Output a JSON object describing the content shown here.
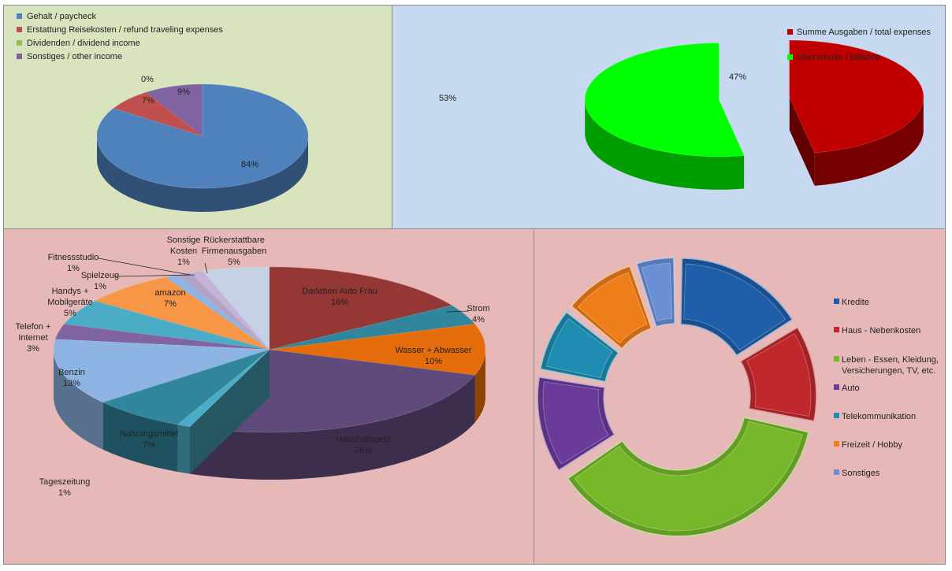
{
  "chart_data": [
    {
      "type": "pie",
      "style": "3d",
      "legend_position": "top-left",
      "categories": [
        "Gehalt / paycheck",
        "Erstattung Reisekosten / refund traveling expenses",
        "Dividenden / dividend income",
        "Sonstiges / other income"
      ],
      "values": [
        84,
        7,
        0,
        9
      ],
      "data_labels": [
        "84%",
        "7%",
        "0%",
        "9%"
      ],
      "colors": [
        "#4f81bd",
        "#c0504d",
        "#9bbb59",
        "#8064a2"
      ]
    },
    {
      "type": "pie",
      "style": "3d-exploded",
      "legend_position": "top-right",
      "categories": [
        "Summe Ausgaben / total expenses",
        "Überschuss / balance"
      ],
      "values": [
        47,
        53
      ],
      "data_labels": [
        "47%",
        "53%"
      ],
      "colors": [
        "#c00000",
        "#00ff00"
      ]
    },
    {
      "type": "pie",
      "style": "3d",
      "legend_position": "none",
      "categories": [
        "Darlehen Auto Frau",
        "Strom",
        "Wasser + Abwasser",
        "Haushaltsgeld",
        "Tageszeitung",
        "Nahrungsmittel",
        "Benzin",
        "Telefon + Internet",
        "Handys + Mobilgeräte",
        "amazon",
        "Spielzeug",
        "Fitnessstudio",
        "Sonstige Kosten",
        "Rückerstattbare Firmenausgaben"
      ],
      "label_lines": [
        [
          "Darlehen Auto Frau"
        ],
        [
          "Strom"
        ],
        [
          "Wasser + Abwasser"
        ],
        [
          "Haushaltsgeld"
        ],
        [
          "Tageszeitung"
        ],
        [
          "Nahrungsmittel"
        ],
        [
          "Benzin"
        ],
        [
          "Telefon +",
          "Internet"
        ],
        [
          "Handys +",
          "Mobilgeräte"
        ],
        [
          "amazon"
        ],
        [
          "Spielzeug"
        ],
        [
          "Fitnessstudio"
        ],
        [
          "Sonstige",
          "Kosten"
        ],
        [
          "Rückerstattbare",
          "Firmenausgaben"
        ]
      ],
      "values": [
        16,
        4,
        10,
        26,
        1,
        7,
        13,
        3,
        5,
        7,
        1,
        1,
        1,
        5
      ],
      "data_labels": [
        "16%",
        "4%",
        "10%",
        "26%",
        "1%",
        "7%",
        "13%",
        "3%",
        "5%",
        "7%",
        "1%",
        "1%",
        "1%",
        "5%"
      ],
      "colors": [
        "#953735",
        "#31859c",
        "#e46c0a",
        "#604a7b",
        "#4bacc6",
        "#31859c",
        "#8eb4e3",
        "#8064a2",
        "#4bacc6",
        "#f79646",
        "#8eb4e3",
        "#b3a2c7",
        "#c3b3d6",
        "#c6d1e6"
      ]
    },
    {
      "type": "doughnut",
      "style": "3d-bevel-exploded",
      "legend_position": "right",
      "categories": [
        "Kredite",
        "Haus - Nebenkosten",
        "Leben - Essen, Kleidung, Versicherungen, TV, etc.",
        "Auto",
        "Telekommunikation",
        "Freizeit / Hobby",
        "Sonstiges"
      ],
      "legend_lines": [
        [
          "Kredite"
        ],
        [
          "Haus - Nebenkosten"
        ],
        [
          "Leben - Essen, Kleidung,",
          "Versicherungen, TV, etc."
        ],
        [
          "Auto"
        ],
        [
          "Telekommunikation"
        ],
        [
          "Freizeit / Hobby"
        ],
        [
          "Sonstiges"
        ]
      ],
      "values": [
        16,
        12,
        37,
        12,
        8,
        9,
        5
      ],
      "colors": [
        "#1f5ea8",
        "#c0282d",
        "#76b82a",
        "#6a3b9a",
        "#1f8db1",
        "#ef7d1a",
        "#6a8fd4"
      ]
    }
  ]
}
